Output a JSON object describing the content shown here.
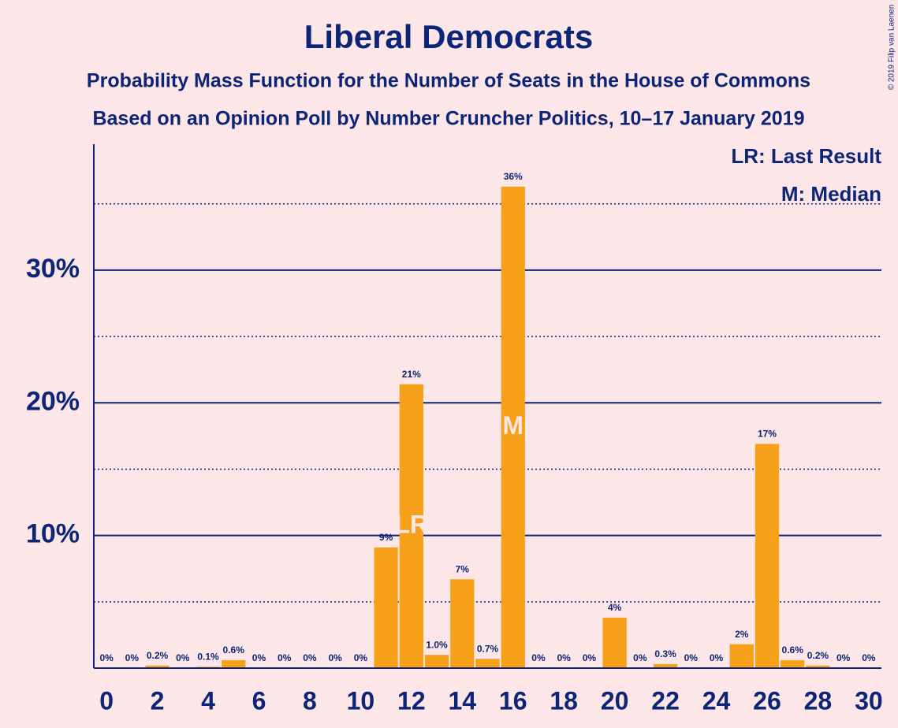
{
  "chart_data": {
    "type": "bar",
    "title": "Liberal Democrats",
    "subtitle": [
      "Probability Mass Function for the Number of Seats in the House of Commons",
      "Based on an Opinion Poll by Number Cruncher Politics, 10–17 January 2019"
    ],
    "copyright": "© 2019 Filip van Laenen",
    "x": [
      0,
      1,
      2,
      3,
      4,
      5,
      6,
      7,
      8,
      9,
      10,
      11,
      12,
      13,
      14,
      15,
      16,
      17,
      18,
      19,
      20,
      21,
      22,
      23,
      24,
      25,
      26,
      27,
      28,
      29,
      30
    ],
    "values": [
      0,
      0,
      0.2,
      0,
      0.1,
      0.6,
      0,
      0,
      0,
      0,
      0,
      9.1,
      21.4,
      1.0,
      6.7,
      0.7,
      36.3,
      0,
      0,
      0,
      3.8,
      0,
      0.3,
      0,
      0,
      1.8,
      16.9,
      0.6,
      0.2,
      0,
      0
    ],
    "value_labels": [
      "0%",
      "0%",
      "0.2%",
      "0%",
      "0.1%",
      "0.6%",
      "0%",
      "0%",
      "0%",
      "0%",
      "0%",
      "9%",
      "21%",
      "1.0%",
      "7%",
      "0.7%",
      "36%",
      "0%",
      "0%",
      "0%",
      "4%",
      "0%",
      "0.3%",
      "0%",
      "0%",
      "2%",
      "17%",
      "0.6%",
      "0.2%",
      "0%",
      "0%"
    ],
    "color": "#f7a11a",
    "xlim": [
      -0.5,
      30.5
    ],
    "xticks": [
      0,
      2,
      4,
      6,
      8,
      10,
      12,
      14,
      16,
      18,
      20,
      22,
      24,
      26,
      28,
      30
    ],
    "ylim": [
      0,
      39.5
    ],
    "yticks": [
      {
        "value": 10,
        "label": "10%"
      },
      {
        "value": 20,
        "label": "20%"
      },
      {
        "value": 30,
        "label": "30%"
      }
    ],
    "minor_yticks": [
      5,
      15,
      25,
      35
    ],
    "grid": true,
    "markers": [
      {
        "x": 12,
        "label": "LR"
      },
      {
        "x": 16,
        "label": "M"
      }
    ],
    "legend": [
      "LR: Last Result",
      "M: Median"
    ]
  }
}
